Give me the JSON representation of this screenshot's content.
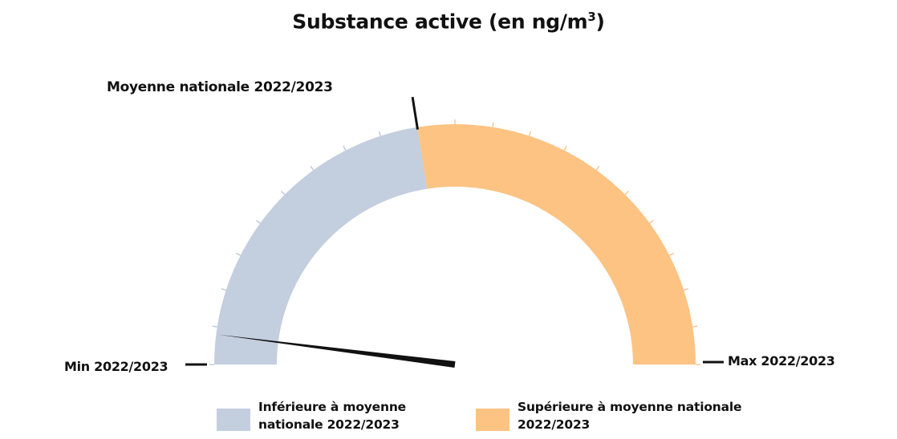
{
  "title": "Substance active (en ng/m",
  "title_sup": "3",
  "title_suffix": ")",
  "labels": {
    "mean": "Moyenne nationale 2022/2023",
    "min": "Min 2022/2023",
    "max": "Max 2022/2023"
  },
  "legend": [
    {
      "label": "Inférieure à moyenne nationale 2022/2023",
      "color": "#c3cedf"
    },
    {
      "label": "Supérieure à moyenne nationale 2022/2023",
      "color": "#fdc383"
    }
  ],
  "chart_data": {
    "type": "gauge",
    "title": "Substance active (en ng/m³)",
    "range_labels": {
      "min": "Min 2022/2023",
      "max": "Max 2022/2023"
    },
    "scale": {
      "min": 0,
      "max": 100,
      "unit": "% of min→max range (no numeric ticks shown)"
    },
    "segments": [
      {
        "name": "Inférieure à moyenne nationale 2022/2023",
        "from": 0,
        "to": 45,
        "color": "#c3cedf"
      },
      {
        "name": "Supérieure à moyenne nationale 2022/2023",
        "from": 45,
        "to": 100,
        "color": "#fdc383"
      }
    ],
    "threshold": {
      "label": "Moyenne nationale 2022/2023",
      "value": 45
    },
    "needle_value": 4,
    "tick_count": 21,
    "legend_position": "bottom"
  }
}
